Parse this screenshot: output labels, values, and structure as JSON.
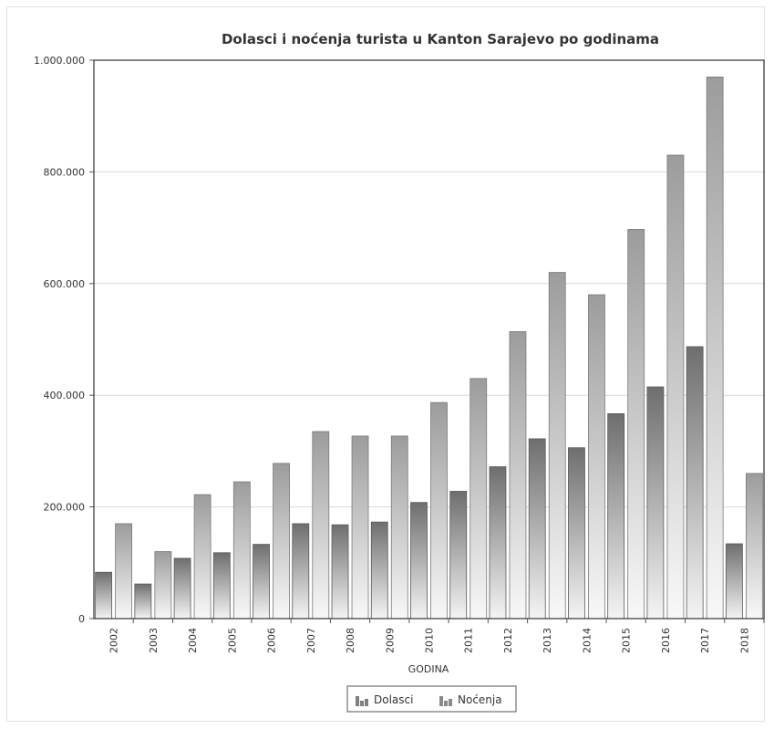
{
  "chart_data": {
    "type": "bar",
    "title": "Dolasci i noćenja turista u Kanton Sarajevo po godinama",
    "xlabel": "GODINA",
    "ylabel": "",
    "ylim": [
      0,
      1000000
    ],
    "yticks": [
      0,
      200000,
      400000,
      600000,
      800000,
      1000000
    ],
    "ytick_labels": [
      "0",
      "200.000",
      "400.000",
      "600.000",
      "800.000",
      "1.000.000"
    ],
    "grid": true,
    "legend_position": "bottom",
    "categories": [
      "2002",
      "2003",
      "2004",
      "2005",
      "2006",
      "2007",
      "2008",
      "2009",
      "2010",
      "2011",
      "2012",
      "2013",
      "2014",
      "2015",
      "2016",
      "2017",
      "2018"
    ],
    "series": [
      {
        "name": "Dolasci",
        "color": "#7f7f7f",
        "values": [
          83000,
          62000,
          108000,
          118000,
          133000,
          170000,
          168000,
          173000,
          208000,
          228000,
          272000,
          322000,
          306000,
          367000,
          415000,
          487000,
          134000
        ]
      },
      {
        "name": "Noćenja",
        "color": "#a8a8a8",
        "values": [
          170000,
          120000,
          222000,
          245000,
          278000,
          335000,
          327000,
          327000,
          387000,
          430000,
          514000,
          620000,
          580000,
          697000,
          830000,
          970000,
          260000
        ]
      }
    ]
  }
}
